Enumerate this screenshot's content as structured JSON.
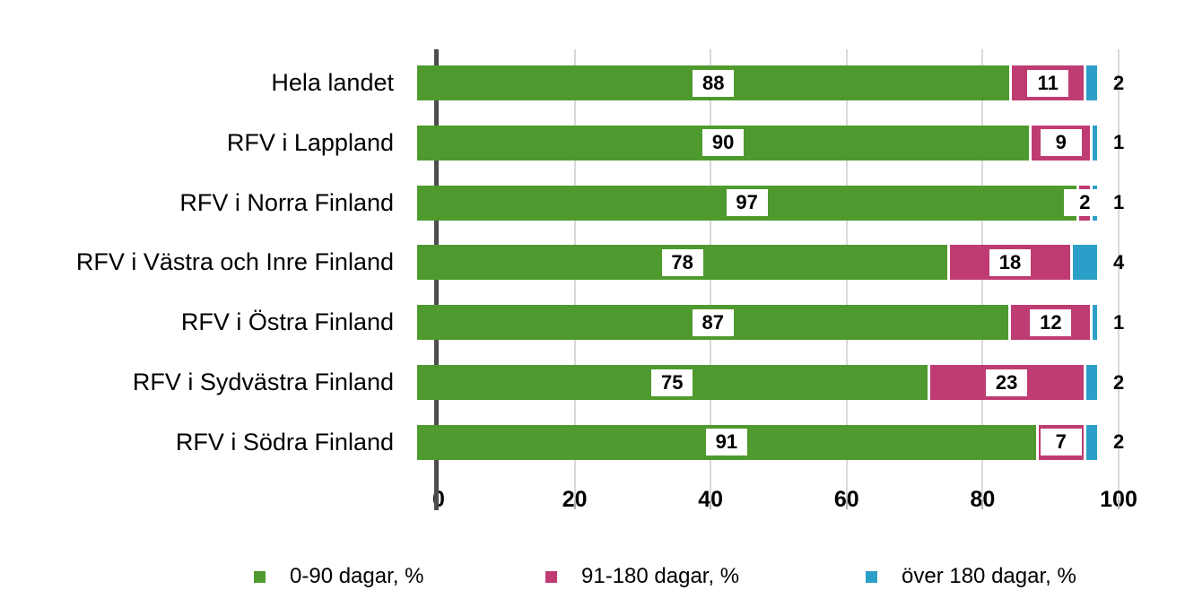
{
  "chart_data": {
    "type": "bar",
    "orientation": "horizontal",
    "stacked": true,
    "title": "",
    "xlabel": "",
    "ylabel": "",
    "xlim": [
      0,
      100
    ],
    "x_ticks": [
      "0",
      "20",
      "40",
      "60",
      "80",
      "100"
    ],
    "grid": "vertical gridlines at x ticks, light gray",
    "legend_position": "bottom",
    "categories": [
      "Hela landet",
      "RFV i Lappland",
      "RFV i Norra Finland",
      "RFV i Västra och Inre Finland",
      "RFV i Östra Finland",
      "RFV i Sydvästra Finland",
      "RFV i Södra Finland"
    ],
    "series": [
      {
        "name": "0-90 dagar, %",
        "color": "#4f9a2e",
        "values": [
          88,
          90,
          97,
          78,
          87,
          75,
          91
        ],
        "label_style": "white box inside segment"
      },
      {
        "name": "91-180 dagar, %",
        "color": "#bf3c72",
        "values": [
          11,
          9,
          2,
          18,
          12,
          23,
          7
        ],
        "label_style": "white box inside segment"
      },
      {
        "name": "över 180 dagar, %",
        "color": "#2b9fc7",
        "values": [
          2,
          1,
          1,
          4,
          1,
          2,
          2
        ],
        "label_style": "outside right of bar"
      }
    ]
  },
  "colors": {
    "background": "#ffffff",
    "gridline": "#d9d9d9",
    "axis_line": "#4d4d4d",
    "tick_mark": "#b3b3b3",
    "label_text": "#000000"
  }
}
